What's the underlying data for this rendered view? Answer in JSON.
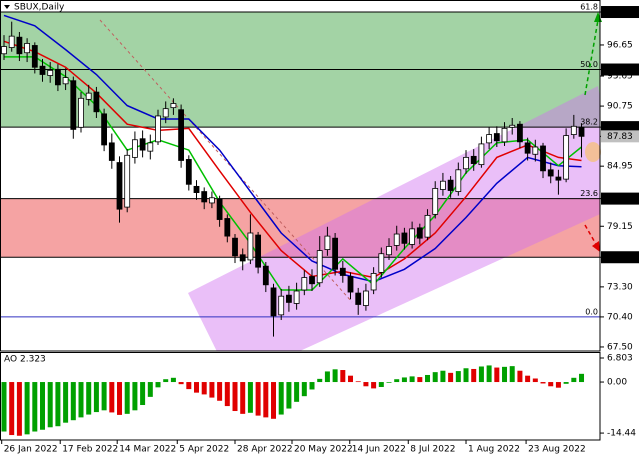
{
  "chart_data": {
    "type": "candlestick",
    "title": "SBUX,Daily",
    "xlim": [
      -0.52,
      77.4
    ],
    "ylim": [
      67.11,
      100.99
    ],
    "xticks": [
      {
        "value": -0.3,
        "label": "26 Jan 2022"
      },
      {
        "value": 7.3,
        "label": "17 Feb 2022"
      },
      {
        "value": 14.7,
        "label": "14 Mar 2022"
      },
      {
        "value": 22.5,
        "label": "5 Apr 2022"
      },
      {
        "value": 30,
        "label": "28 Apr 2022"
      },
      {
        "value": 37.4,
        "label": "20 May 2022"
      },
      {
        "value": 44.9,
        "label": "14 Jun 2022"
      },
      {
        "value": 52.5,
        "label": "8 Jul 2022"
      },
      {
        "value": 60,
        "label": "1 Aug 2022"
      },
      {
        "value": 67.8,
        "label": "23 Aug 2022"
      }
    ],
    "yticks": [
      99.83,
      96.65,
      94.28,
      93.65,
      90.75,
      88.72,
      87.83,
      84.95,
      81.82,
      79.15,
      76.16,
      {
        "value": 73.3,
        "label": "73.30"
      },
      {
        "value": 70.4,
        "label": "70.40"
      },
      {
        "value": 67.5,
        "label": "67.50"
      }
    ],
    "up_color": "#ffffff",
    "down_color": "#000000",
    "candles": {
      "open": [
        95.8,
        96.4,
        97.4,
        95.9,
        96.6,
        94.6,
        93.7,
        94.3,
        92.9,
        93.2,
        88.7,
        91.4,
        92.1,
        90.0,
        87.2,
        85.3,
        81.0,
        85.8,
        87.6,
        86.4,
        87.3,
        89.7,
        90.6,
        90.4,
        85.6,
        83.0,
        82.5,
        81.4,
        81.8,
        79.9,
        78.0,
        76.4,
        75.9,
        78.3,
        75.3,
        73.2,
        70.6,
        72.5,
        71.7,
        73.0,
        74.3,
        73.7,
        76.9,
        78.0,
        75.1,
        74.3,
        72.7,
        71.5,
        73.0,
        74.7,
        76.4,
        77.3,
        78.5,
        77.4,
        79.0,
        78.1,
        80.3,
        82.7,
        83.6,
        82.5,
        84.7,
        85.9,
        85.1,
        87.2,
        88.1,
        87.3,
        88.7,
        89.0,
        87.2,
        86.1,
        86.9,
        84.6,
        83.9,
        83.7,
        88.0,
        88.7
      ],
      "high": [
        97.6,
        98.9,
        97.9,
        97.3,
        96.9,
        95.3,
        95.0,
        94.8,
        94.4,
        93.6,
        92.1,
        92.8,
        92.6,
        90.5,
        88.1,
        85.9,
        86.6,
        88.3,
        88.4,
        88.0,
        90.4,
        91.2,
        91.5,
        90.9,
        86.0,
        83.6,
        82.9,
        82.5,
        82.1,
        80.3,
        78.4,
        77.0,
        80.3,
        78.6,
        75.7,
        73.6,
        73.1,
        73.4,
        73.7,
        74.9,
        75.0,
        78.2,
        79.1,
        78.5,
        75.8,
        74.7,
        73.2,
        73.6,
        75.2,
        77.1,
        78.0,
        79.2,
        79.0,
        79.6,
        79.4,
        80.8,
        83.5,
        84.3,
        84.0,
        85.3,
        86.5,
        86.6,
        87.8,
        88.7,
        88.8,
        89.2,
        89.6,
        89.3,
        87.7,
        87.5,
        87.2,
        85.3,
        84.6,
        88.6,
        89.9,
        89.1
      ],
      "low": [
        95.2,
        96.0,
        95.1,
        95.0,
        93.9,
        93.1,
        93.0,
        92.2,
        92.3,
        87.6,
        88.2,
        90.8,
        89.6,
        86.4,
        84.7,
        79.5,
        80.5,
        85.2,
        85.8,
        85.6,
        87.0,
        89.1,
        89.9,
        84.8,
        82.6,
        81.7,
        80.8,
        80.9,
        79.1,
        77.6,
        75.6,
        74.9,
        75.5,
        74.6,
        72.8,
        68.5,
        70.1,
        70.9,
        71.1,
        72.5,
        72.9,
        73.3,
        76.3,
        74.4,
        73.7,
        72.1,
        70.6,
        71.0,
        72.6,
        74.2,
        75.9,
        76.8,
        76.9,
        77.0,
        77.4,
        77.8,
        79.9,
        82.1,
        81.9,
        82.1,
        84.2,
        84.5,
        84.8,
        86.6,
        86.8,
        86.9,
        88.0,
        86.7,
        85.5,
        85.4,
        83.8,
        83.3,
        82.2,
        83.4,
        87.6,
        85.8
      ],
      "close": [
        96.5,
        97.5,
        95.8,
        96.8,
        94.5,
        93.8,
        94.2,
        92.8,
        93.5,
        88.5,
        91.5,
        92.0,
        90.2,
        87.0,
        85.5,
        80.8,
        86.0,
        87.5,
        86.5,
        87.2,
        89.8,
        90.5,
        91.0,
        85.5,
        83.2,
        82.4,
        81.5,
        81.9,
        79.8,
        78.2,
        76.3,
        75.8,
        78.5,
        75.2,
        73.5,
        70.5,
        72.4,
        71.8,
        72.9,
        74.2,
        73.6,
        76.8,
        78.2,
        75.0,
        74.4,
        72.8,
        71.6,
        72.9,
        74.6,
        76.5,
        77.2,
        78.4,
        77.5,
        78.9,
        78.0,
        80.2,
        82.8,
        83.5,
        82.6,
        84.6,
        85.8,
        85.2,
        87.1,
        88.0,
        87.4,
        88.6,
        88.9,
        87.3,
        86.2,
        86.8,
        84.5,
        84.0,
        83.6,
        87.9,
        88.8,
        87.83
      ]
    },
    "last_price_color": "#c0c0c0",
    "moving_averages": [
      {
        "color": "#0000c8",
        "x": [
          0,
          4,
          8,
          12,
          16,
          20,
          24,
          28,
          32,
          36,
          40,
          44,
          48,
          52,
          56,
          60,
          64,
          68,
          72,
          75
        ],
        "values": [
          99.5,
          98.5,
          96.2,
          93.8,
          90.8,
          89.5,
          89.5,
          86.5,
          82.5,
          78.5,
          75.8,
          74.5,
          73.8,
          75.0,
          77.0,
          80.0,
          83.3,
          85.8,
          85.0,
          84.9
        ]
      },
      {
        "color": "#e00000",
        "x": [
          0,
          4,
          8,
          12,
          16,
          20,
          24,
          28,
          32,
          36,
          40,
          44,
          48,
          52,
          56,
          60,
          64,
          68,
          72,
          75
        ],
        "values": [
          97.0,
          96.0,
          94.5,
          92.0,
          89.0,
          88.4,
          88.6,
          84.5,
          80.5,
          76.8,
          74.3,
          74.8,
          74.2,
          76.0,
          78.5,
          82.0,
          85.8,
          87.0,
          85.8,
          85.5
        ]
      },
      {
        "color": "#00c000",
        "x": [
          0,
          4,
          8,
          12,
          16,
          20,
          24,
          28,
          32,
          36,
          40,
          44,
          48,
          52,
          56,
          60,
          64,
          68,
          72,
          75
        ],
        "values": [
          95.5,
          95.5,
          93.6,
          90.8,
          86.5,
          87.5,
          86.5,
          81.5,
          77.5,
          73.0,
          73.0,
          76.0,
          73.5,
          77.0,
          80.2,
          84.3,
          87.2,
          87.5,
          85.0,
          86.8
        ]
      }
    ],
    "zones": [
      {
        "from": 88.72,
        "to": 99.83,
        "color": "#a3d3a5"
      },
      {
        "from": 76.16,
        "to": 81.82,
        "color": "#f5a3a3"
      }
    ],
    "hlines": [
      {
        "price": 99.83,
        "color": "#000000",
        "highlight": true
      },
      {
        "price": 94.28,
        "color": "#000000",
        "highlight": true
      },
      {
        "price": 88.72,
        "color": "#000000",
        "highlight": true
      },
      {
        "price": 81.82,
        "color": "#000000",
        "highlight": true
      },
      {
        "price": 76.16,
        "color": "#000000",
        "highlight": true
      },
      {
        "price": 70.4,
        "color": "#3030c0",
        "highlight": false
      }
    ],
    "fib_levels": [
      {
        "ratio": 61.8,
        "price": 99.83
      },
      {
        "ratio": 50.0,
        "price": 94.28
      },
      {
        "ratio": 38.2,
        "price": 88.72
      },
      {
        "ratio": 23.6,
        "price": 81.82
      },
      {
        "ratio": 0.0,
        "price": 70.4
      }
    ],
    "indicator": {
      "name": "AO",
      "last_value": 2.323,
      "ylim": [
        -16.4,
        8.5
      ],
      "yticks": [
        6.803,
        {
          "value": 0,
          "label": "0.00"
        },
        {
          "value": -14.44,
          "label": "-14.44"
        }
      ],
      "up_color": "#00a000",
      "down_color": "#e00000",
      "values": [
        -14.0,
        -15.0,
        -15.2,
        -14.8,
        -14.0,
        -13.5,
        -12.8,
        -12.5,
        -11.5,
        -10.8,
        -10.0,
        -9.2,
        -8.5,
        -8.0,
        -8.6,
        -9.3,
        -9.0,
        -8.0,
        -6.5,
        -4.2,
        -1.5,
        0.8,
        1.2,
        -0.6,
        -2.0,
        -3.0,
        -3.5,
        -4.4,
        -5.3,
        -6.8,
        -8.2,
        -9.0,
        -8.7,
        -9.5,
        -10.0,
        -10.4,
        -9.2,
        -7.5,
        -5.6,
        -4.0,
        -2.1,
        0.9,
        3.0,
        3.6,
        3.4,
        1.8,
        0.2,
        -1.2,
        -1.8,
        -1.4,
        -0.2,
        0.8,
        1.3,
        1.6,
        1.4,
        2.0,
        2.8,
        3.2,
        2.6,
        3.1,
        3.9,
        3.7,
        4.4,
        4.7,
        4.1,
        4.3,
        4.5,
        3.2,
        1.8,
        1.0,
        -0.4,
        -1.2,
        -1.6,
        -0.5,
        1.2,
        2.323
      ]
    }
  }
}
